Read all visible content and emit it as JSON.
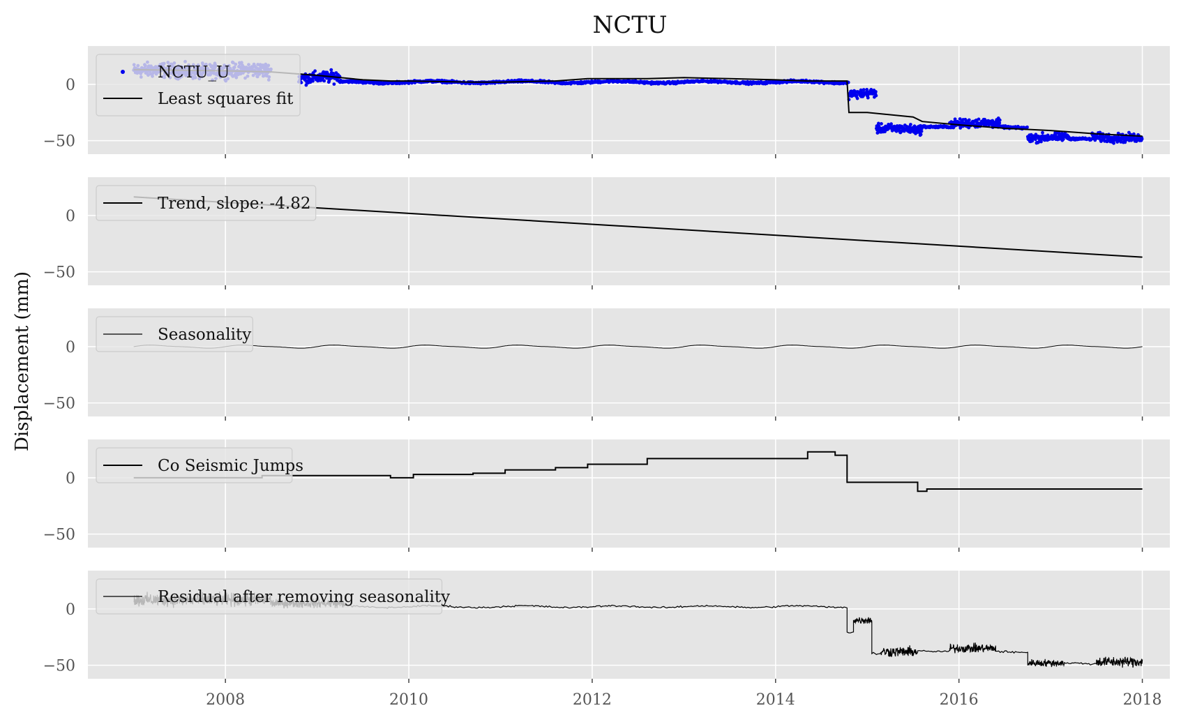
{
  "colors": {
    "axes_bg": "#e5e5e5",
    "grid": "#ffffff",
    "tick_text": "#555555",
    "line": "#000000",
    "obs_marker": "#0000ee",
    "legend_bg": "#e5e5e5",
    "legend_border": "#cccccc"
  },
  "chart_data": {
    "type": "line",
    "title": "NCTU",
    "ylabel": "Displacement (mm)",
    "xlabel": "",
    "xlim": [
      2006.5,
      2018.3
    ],
    "xticks": [
      2008,
      2010,
      2012,
      2014,
      2016,
      2018
    ],
    "xtick_labels": [
      "2008",
      "2010",
      "2012",
      "2014",
      "2016",
      "2018"
    ],
    "ylim": [
      -62,
      34
    ],
    "yticks": [
      0,
      -50
    ],
    "ytick_labels": [
      "0",
      "−50"
    ],
    "grid": true,
    "legend_position": "upper left",
    "panels": [
      {
        "legend": [
          {
            "label": "NCTU_U",
            "kind": "marker",
            "color": "#0000ee"
          },
          {
            "label": "Least squares fit",
            "kind": "line",
            "color": "#000000"
          }
        ],
        "series": [
          {
            "name": "NCTU_U",
            "kind": "scatter",
            "color": "#0000ee",
            "segments": [
              {
                "start": 2007.0,
                "end": 2008.5,
                "level": 12,
                "noise": 10
              },
              {
                "start": 2008.8,
                "end": 2009.25,
                "level": 6,
                "noise": 8
              },
              {
                "start": 2009.25,
                "end": 2014.8,
                "level": 2,
                "noise": 1.5
              },
              {
                "start": 2014.8,
                "end": 2015.1,
                "level": -8,
                "noise": 6
              },
              {
                "start": 2015.1,
                "end": 2015.6,
                "level": -40,
                "noise": 6
              },
              {
                "start": 2015.6,
                "end": 2015.9,
                "level": -37,
                "noise": 1.5
              },
              {
                "start": 2015.9,
                "end": 2016.45,
                "level": -35,
                "noise": 6
              },
              {
                "start": 2016.45,
                "end": 2016.75,
                "level": -38,
                "noise": 1.5
              },
              {
                "start": 2016.75,
                "end": 2017.2,
                "level": -47,
                "noise": 6
              },
              {
                "start": 2017.2,
                "end": 2017.45,
                "level": -49,
                "noise": 1.5
              },
              {
                "start": 2017.45,
                "end": 2018.0,
                "level": -47,
                "noise": 6
              }
            ]
          },
          {
            "name": "Least squares fit",
            "kind": "line",
            "color": "#000000",
            "x": [
              2007.0,
              2008.0,
              2008.5,
              2009.0,
              2009.5,
              2009.8,
              2010.0,
              2010.7,
              2011.0,
              2011.6,
              2011.95,
              2012.6,
              2013.0,
              2013.5,
              2014.0,
              2014.35,
              2014.65,
              2014.75,
              2014.78,
              2014.8,
              2015.0,
              2015.5,
              2015.6,
              2016.0,
              2016.5,
              2017.0,
              2017.5,
              2018.0
            ],
            "y": [
              13,
              12,
              11,
              8,
              4,
              3,
              3,
              2,
              2,
              3,
              5,
              5,
              6,
              5,
              4,
              3,
              3,
              3,
              3,
              -25,
              -25,
              -29,
              -33,
              -36,
              -39,
              -41,
              -44,
              -46
            ]
          }
        ]
      },
      {
        "legend": [
          {
            "label": "Trend, slope: -4.82",
            "kind": "line",
            "color": "#000000"
          }
        ],
        "series": [
          {
            "name": "Trend, slope: -4.82",
            "kind": "line",
            "color": "#000000",
            "x": [
              2007.0,
              2018.0
            ],
            "y": [
              16.5,
              -37.0
            ]
          }
        ]
      },
      {
        "legend": [
          {
            "label": "Seasonality",
            "kind": "thinline",
            "color": "#000000"
          }
        ],
        "series": [
          {
            "name": "Seasonality",
            "kind": "sine",
            "color": "#000000",
            "x_range": [
              2007.0,
              2018.0
            ],
            "amplitude": 1.2,
            "period": 1.0
          }
        ]
      },
      {
        "legend": [
          {
            "label": "Co Seismic Jumps",
            "kind": "line",
            "color": "#000000"
          }
        ],
        "series": [
          {
            "name": "Co Seismic Jumps",
            "kind": "step",
            "color": "#000000",
            "x": [
              2007.0,
              2008.4,
              2009.8,
              2010.05,
              2010.7,
              2011.05,
              2011.6,
              2011.95,
              2012.6,
              2014.35,
              2014.65,
              2014.78,
              2015.55,
              2015.65,
              2015.85,
              2018.0
            ],
            "y": [
              0,
              2,
              0,
              3,
              4,
              7,
              9,
              12,
              17,
              23,
              20,
              -4,
              -12,
              -10,
              -10,
              -10
            ]
          }
        ]
      },
      {
        "legend": [
          {
            "label": "Residual after removing seasonality",
            "kind": "thinline",
            "color": "#000000"
          }
        ],
        "series": [
          {
            "name": "Residual after removing seasonality",
            "kind": "noisy",
            "color": "#000000",
            "segments": [
              {
                "start": 2007.0,
                "end": 2008.5,
                "level": 8,
                "noise": 9
              },
              {
                "start": 2008.5,
                "end": 2009.3,
                "level": 5,
                "noise": 6
              },
              {
                "start": 2009.3,
                "end": 2014.78,
                "level": 2,
                "noise": 1.2
              },
              {
                "start": 2014.78,
                "end": 2014.85,
                "level": -20,
                "noise": 1
              },
              {
                "start": 2014.85,
                "end": 2015.05,
                "level": -10,
                "noise": 5
              },
              {
                "start": 2015.05,
                "end": 2015.15,
                "level": -40,
                "noise": 2
              },
              {
                "start": 2015.15,
                "end": 2015.55,
                "level": -38,
                "noise": 7
              },
              {
                "start": 2015.55,
                "end": 2015.9,
                "level": -37,
                "noise": 1.2
              },
              {
                "start": 2015.9,
                "end": 2016.4,
                "level": -35,
                "noise": 6
              },
              {
                "start": 2016.4,
                "end": 2016.75,
                "level": -38,
                "noise": 1.5
              },
              {
                "start": 2016.75,
                "end": 2017.15,
                "level": -48,
                "noise": 5
              },
              {
                "start": 2017.15,
                "end": 2017.5,
                "level": -49,
                "noise": 1.5
              },
              {
                "start": 2017.5,
                "end": 2018.0,
                "level": -47,
                "noise": 7
              }
            ]
          }
        ]
      }
    ]
  }
}
